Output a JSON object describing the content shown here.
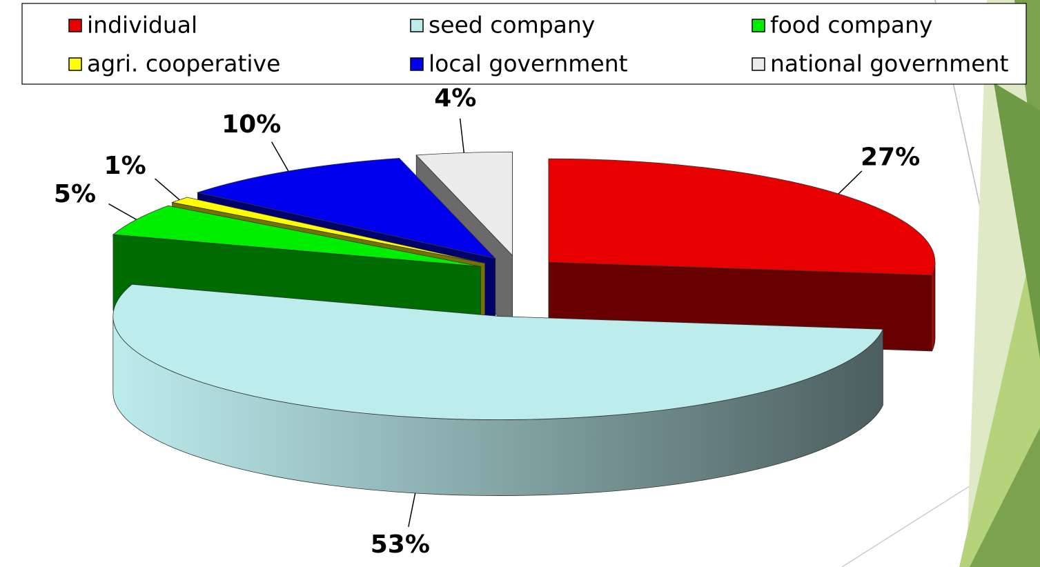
{
  "chart_data": {
    "type": "pie",
    "categories": [
      "individual",
      "seed company",
      "food company",
      "agri. cooperative",
      "local government",
      "national government"
    ],
    "values": [
      27,
      53,
      5,
      1,
      10,
      4
    ],
    "value_labels": [
      "27%",
      "53%",
      "5%",
      "1%",
      "10%",
      "4%"
    ],
    "colors": [
      "#e80000",
      "#bdeced",
      "#00ee00",
      "#ffff00",
      "#0000ee",
      "#ececec"
    ],
    "legend": "top"
  }
}
